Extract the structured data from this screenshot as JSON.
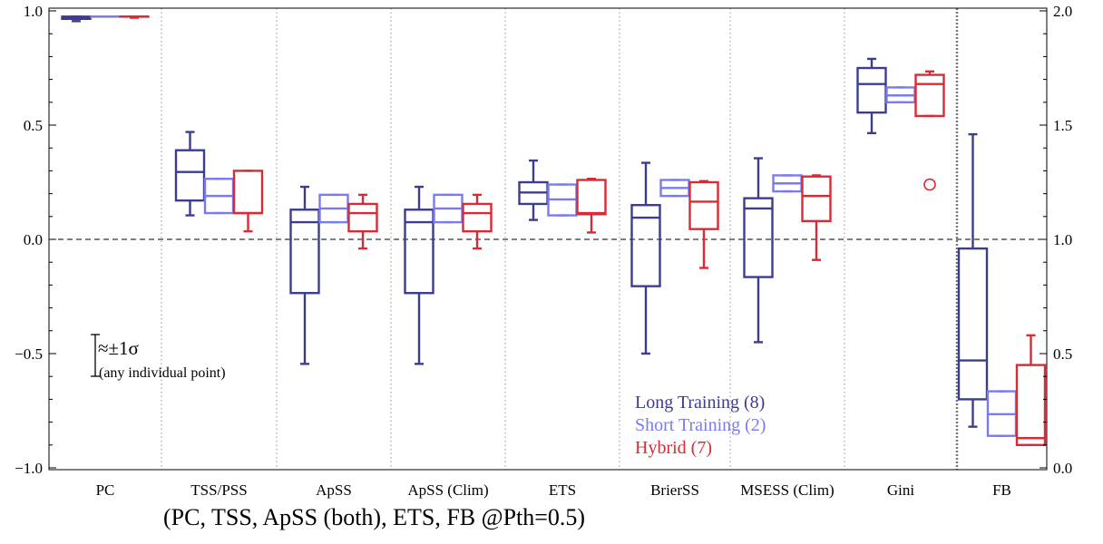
{
  "chart_data": {
    "type": "box",
    "categories": [
      "PC",
      "TSS/PSS",
      "ApSS",
      "ApSS (Clim)",
      "ETS",
      "BrierSS",
      "MSESS (Clim)",
      "Gini",
      "FB"
    ],
    "ylim_left": [
      -1.0,
      1.0
    ],
    "ylim_right": [
      0.0,
      2.0
    ],
    "yticks_left": [
      "1.0",
      "0.5",
      "0.0",
      "−0.5",
      "−1.0"
    ],
    "yticks_right": [
      "2.0",
      "1.5",
      "1.0",
      "0.5",
      "0.0"
    ],
    "right_axis_applies_to": "FB",
    "reference_line_left": 0.0,
    "series": [
      {
        "name": "Long Training (8)",
        "color": "#3d3d8f",
        "boxes": [
          {
            "category": "PC",
            "whislo": 0.955,
            "q1": 0.965,
            "med": 0.97,
            "q3": 0.975,
            "whishi": 0.975
          },
          {
            "category": "TSS/PSS",
            "whislo": 0.105,
            "q1": 0.17,
            "med": 0.295,
            "q3": 0.39,
            "whishi": 0.47
          },
          {
            "category": "ApSS",
            "whislo": -0.545,
            "q1": -0.235,
            "med": 0.075,
            "q3": 0.13,
            "whishi": 0.23
          },
          {
            "category": "ApSS (Clim)",
            "whislo": -0.545,
            "q1": -0.235,
            "med": 0.075,
            "q3": 0.13,
            "whishi": 0.23
          },
          {
            "category": "ETS",
            "whislo": 0.085,
            "q1": 0.155,
            "med": 0.205,
            "q3": 0.25,
            "whishi": 0.345
          },
          {
            "category": "BrierSS",
            "whislo": -0.5,
            "q1": -0.205,
            "med": 0.095,
            "q3": 0.15,
            "whishi": 0.335
          },
          {
            "category": "MSESS (Clim)",
            "whislo": -0.45,
            "q1": -0.165,
            "med": 0.135,
            "q3": 0.18,
            "whishi": 0.355
          },
          {
            "category": "Gini",
            "whislo": 0.465,
            "q1": 0.555,
            "med": 0.68,
            "q3": 0.75,
            "whishi": 0.79
          },
          {
            "category": "FB",
            "whislo": 0.18,
            "q1": 0.3,
            "med": 0.47,
            "q3": 0.96,
            "whishi": 1.46
          }
        ]
      },
      {
        "name": "Short Training (2)",
        "color": "#7b7bf0",
        "boxes": [
          {
            "category": "PC",
            "whislo": 0.975,
            "q1": 0.975,
            "med": 0.975,
            "q3": 0.975,
            "whishi": 0.975
          },
          {
            "category": "TSS/PSS",
            "whislo": 0.115,
            "q1": 0.115,
            "med": 0.19,
            "q3": 0.265,
            "whishi": 0.265
          },
          {
            "category": "ApSS",
            "whislo": 0.075,
            "q1": 0.075,
            "med": 0.135,
            "q3": 0.195,
            "whishi": 0.195
          },
          {
            "category": "ApSS (Clim)",
            "whislo": 0.075,
            "q1": 0.075,
            "med": 0.135,
            "q3": 0.195,
            "whishi": 0.195
          },
          {
            "category": "ETS",
            "whislo": 0.105,
            "q1": 0.105,
            "med": 0.175,
            "q3": 0.24,
            "whishi": 0.24
          },
          {
            "category": "BrierSS",
            "whislo": 0.19,
            "q1": 0.19,
            "med": 0.225,
            "q3": 0.26,
            "whishi": 0.26
          },
          {
            "category": "MSESS (Clim)",
            "whislo": 0.21,
            "q1": 0.21,
            "med": 0.245,
            "q3": 0.28,
            "whishi": 0.28
          },
          {
            "category": "Gini",
            "whislo": 0.6,
            "q1": 0.6,
            "med": 0.63,
            "q3": 0.665,
            "whishi": 0.665
          },
          {
            "category": "FB",
            "whislo": 0.14,
            "q1": 0.14,
            "med": 0.235,
            "q3": 0.335,
            "whishi": 0.335
          }
        ]
      },
      {
        "name": "Hybrid (7)",
        "color": "#d82b35",
        "boxes": [
          {
            "category": "PC",
            "whislo": 0.97,
            "q1": 0.975,
            "med": 0.975,
            "q3": 0.975,
            "whishi": 0.975
          },
          {
            "category": "TSS/PSS",
            "whislo": 0.035,
            "q1": 0.115,
            "med": 0.115,
            "q3": 0.3,
            "whishi": 0.3
          },
          {
            "category": "ApSS",
            "whislo": -0.04,
            "q1": 0.035,
            "med": 0.115,
            "q3": 0.155,
            "whishi": 0.195
          },
          {
            "category": "ApSS (Clim)",
            "whislo": -0.04,
            "q1": 0.035,
            "med": 0.115,
            "q3": 0.155,
            "whishi": 0.195
          },
          {
            "category": "ETS",
            "whislo": 0.03,
            "q1": 0.11,
            "med": 0.115,
            "q3": 0.26,
            "whishi": 0.265
          },
          {
            "category": "BrierSS",
            "whislo": -0.125,
            "q1": 0.045,
            "med": 0.165,
            "q3": 0.25,
            "whishi": 0.255
          },
          {
            "category": "MSESS (Clim)",
            "whislo": -0.09,
            "q1": 0.08,
            "med": 0.19,
            "q3": 0.275,
            "whishi": 0.28
          },
          {
            "category": "Gini",
            "whislo": 0.54,
            "q1": 0.54,
            "med": 0.68,
            "q3": 0.72,
            "whishi": 0.735,
            "outliers": [
              0.24
            ]
          },
          {
            "category": "FB",
            "whislo": 0.1,
            "q1": 0.1,
            "med": 0.13,
            "q3": 0.45,
            "whishi": 0.58
          }
        ]
      }
    ],
    "legend": {
      "placement": "bottom-right",
      "entries": [
        "Long Training (8)",
        "Short Training (2)",
        "Hybrid (7)"
      ]
    },
    "sigma_annotation": {
      "label": "≈±1σ",
      "sublabel": "(any individual point)",
      "half_range": 0.05
    },
    "caption": "(PC, TSS, ApSS (both), ETS, FB @Pth=0.5)"
  }
}
